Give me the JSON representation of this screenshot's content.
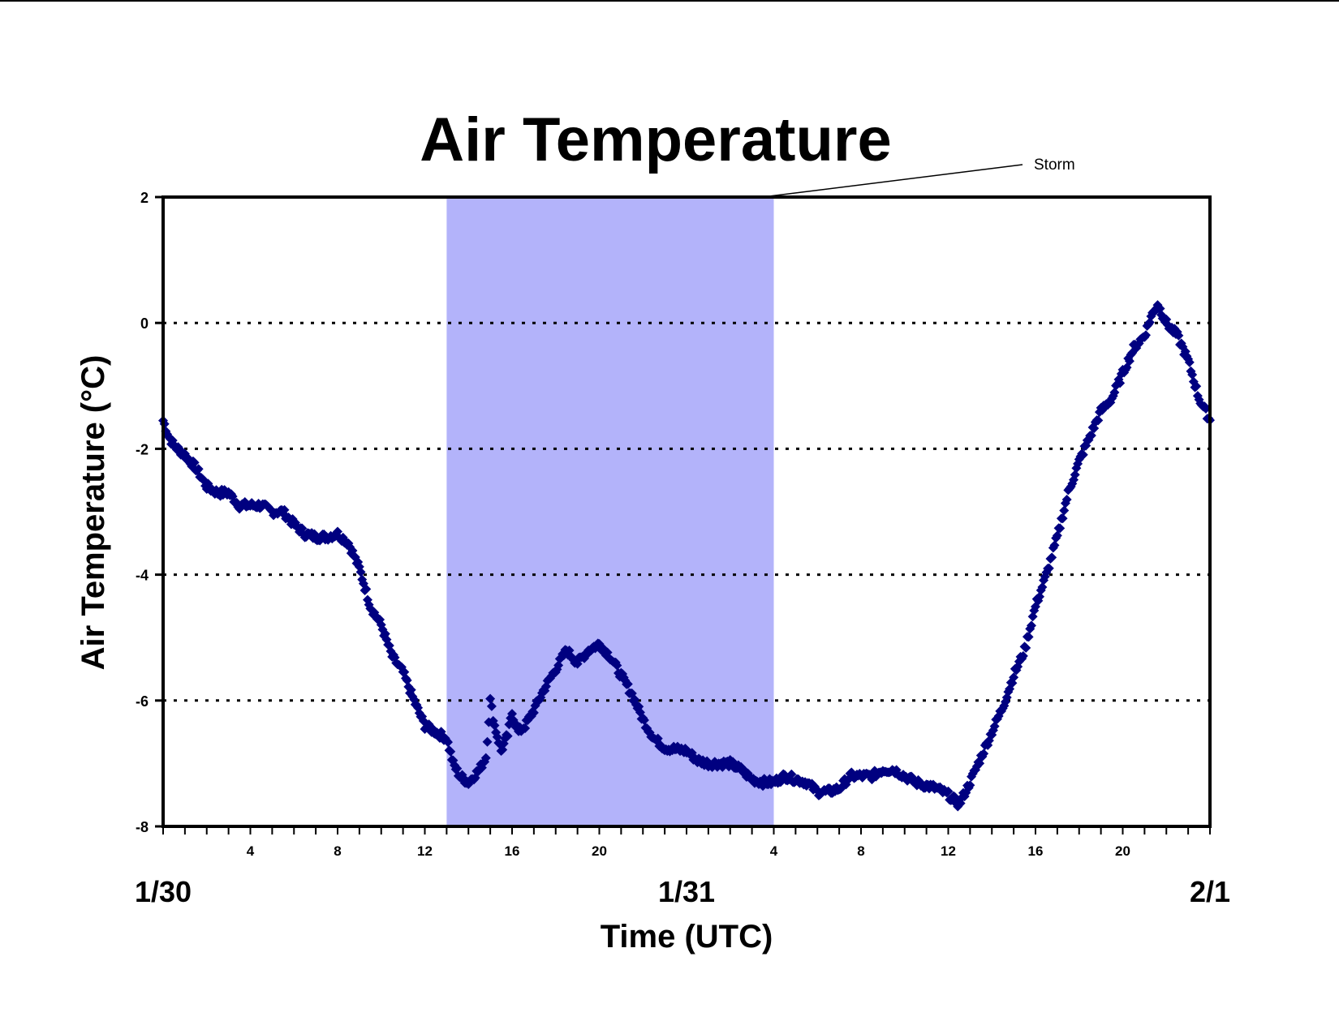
{
  "chart_data": {
    "type": "scatter",
    "title": "Air Temperature",
    "xlabel": "Time (UTC)",
    "ylabel": "Air Temperature (°C)",
    "ylim": [
      -8,
      2
    ],
    "xlim_hours": [
      0,
      48
    ],
    "yticks": [
      2,
      0,
      -2,
      -4,
      -6,
      -8
    ],
    "gridlines_y": [
      0,
      -2,
      -4,
      -6
    ],
    "grid_style": "dotted",
    "hour_tick_labels": [
      {
        "hour": 4,
        "label": "4"
      },
      {
        "hour": 8,
        "label": "8"
      },
      {
        "hour": 12,
        "label": "12"
      },
      {
        "hour": 16,
        "label": "16"
      },
      {
        "hour": 20,
        "label": "20"
      },
      {
        "hour": 28,
        "label": "4"
      },
      {
        "hour": 32,
        "label": "8"
      },
      {
        "hour": 36,
        "label": "12"
      },
      {
        "hour": 40,
        "label": "16"
      },
      {
        "hour": 44,
        "label": "20"
      }
    ],
    "day_labels": [
      {
        "hour": 0,
        "label": "1/30"
      },
      {
        "hour": 24,
        "label": "1/31"
      },
      {
        "hour": 48,
        "label": "2/1"
      }
    ],
    "shaded_region": {
      "label": "Storm",
      "x_start_hours": 13,
      "x_end_hours": 28,
      "color": "#b3b3fa"
    },
    "series": [
      {
        "color": "#000080",
        "marker": "diamond",
        "points": [
          [
            0.0,
            -1.55
          ],
          [
            0.25,
            -1.8
          ],
          [
            0.5,
            -1.95
          ],
          [
            1.0,
            -2.1
          ],
          [
            1.5,
            -2.3
          ],
          [
            2.0,
            -2.6
          ],
          [
            2.5,
            -2.7
          ],
          [
            3.0,
            -2.7
          ],
          [
            3.5,
            -2.9
          ],
          [
            4.0,
            -2.9
          ],
          [
            4.5,
            -2.9
          ],
          [
            5.0,
            -3.0
          ],
          [
            5.5,
            -3.0
          ],
          [
            6.0,
            -3.2
          ],
          [
            6.5,
            -3.35
          ],
          [
            7.0,
            -3.4
          ],
          [
            7.5,
            -3.4
          ],
          [
            8.0,
            -3.35
          ],
          [
            8.5,
            -3.5
          ],
          [
            9.0,
            -3.9
          ],
          [
            9.5,
            -4.5
          ],
          [
            10.0,
            -4.8
          ],
          [
            10.5,
            -5.3
          ],
          [
            11.0,
            -5.55
          ],
          [
            11.5,
            -6.0
          ],
          [
            12.0,
            -6.4
          ],
          [
            12.5,
            -6.5
          ],
          [
            13.0,
            -6.6
          ],
          [
            13.3,
            -7.0
          ],
          [
            13.6,
            -7.2
          ],
          [
            14.0,
            -7.3
          ],
          [
            14.5,
            -7.1
          ],
          [
            14.8,
            -6.9
          ],
          [
            15.0,
            -6.0
          ],
          [
            15.2,
            -6.4
          ],
          [
            15.5,
            -6.8
          ],
          [
            15.8,
            -6.55
          ],
          [
            16.0,
            -6.2
          ],
          [
            16.3,
            -6.5
          ],
          [
            16.6,
            -6.4
          ],
          [
            17.0,
            -6.15
          ],
          [
            17.5,
            -5.8
          ],
          [
            18.0,
            -5.5
          ],
          [
            18.5,
            -5.2
          ],
          [
            19.0,
            -5.4
          ],
          [
            19.5,
            -5.2
          ],
          [
            20.0,
            -5.1
          ],
          [
            20.5,
            -5.3
          ],
          [
            21.0,
            -5.6
          ],
          [
            21.5,
            -5.9
          ],
          [
            22.0,
            -6.3
          ],
          [
            22.5,
            -6.6
          ],
          [
            23.0,
            -6.75
          ],
          [
            24.0,
            -6.8
          ],
          [
            24.5,
            -6.95
          ],
          [
            25.0,
            -7.0
          ],
          [
            26.0,
            -7.0
          ],
          [
            26.5,
            -7.1
          ],
          [
            27.0,
            -7.25
          ],
          [
            27.5,
            -7.3
          ],
          [
            28.0,
            -7.3
          ],
          [
            28.5,
            -7.2
          ],
          [
            29.0,
            -7.25
          ],
          [
            29.5,
            -7.3
          ],
          [
            30.0,
            -7.45
          ],
          [
            30.5,
            -7.45
          ],
          [
            31.0,
            -7.4
          ],
          [
            31.5,
            -7.2
          ],
          [
            32.0,
            -7.2
          ],
          [
            32.5,
            -7.2
          ],
          [
            33.0,
            -7.1
          ],
          [
            33.5,
            -7.1
          ],
          [
            34.0,
            -7.2
          ],
          [
            34.5,
            -7.3
          ],
          [
            35.0,
            -7.35
          ],
          [
            35.5,
            -7.4
          ],
          [
            36.0,
            -7.5
          ],
          [
            36.5,
            -7.65
          ],
          [
            37.0,
            -7.3
          ],
          [
            37.5,
            -6.9
          ],
          [
            38.0,
            -6.5
          ],
          [
            38.5,
            -6.1
          ],
          [
            39.0,
            -5.6
          ],
          [
            39.5,
            -5.2
          ],
          [
            40.0,
            -4.5
          ],
          [
            40.5,
            -4.0
          ],
          [
            41.0,
            -3.4
          ],
          [
            41.5,
            -2.7
          ],
          [
            42.0,
            -2.2
          ],
          [
            42.5,
            -1.8
          ],
          [
            43.0,
            -1.4
          ],
          [
            43.5,
            -1.2
          ],
          [
            44.0,
            -0.8
          ],
          [
            44.5,
            -0.4
          ],
          [
            45.0,
            -0.2
          ],
          [
            45.3,
            0.1
          ],
          [
            45.6,
            0.3
          ],
          [
            46.0,
            0.0
          ],
          [
            46.5,
            -0.2
          ],
          [
            47.0,
            -0.6
          ],
          [
            47.5,
            -1.2
          ],
          [
            48.0,
            -1.55
          ]
        ]
      }
    ]
  }
}
